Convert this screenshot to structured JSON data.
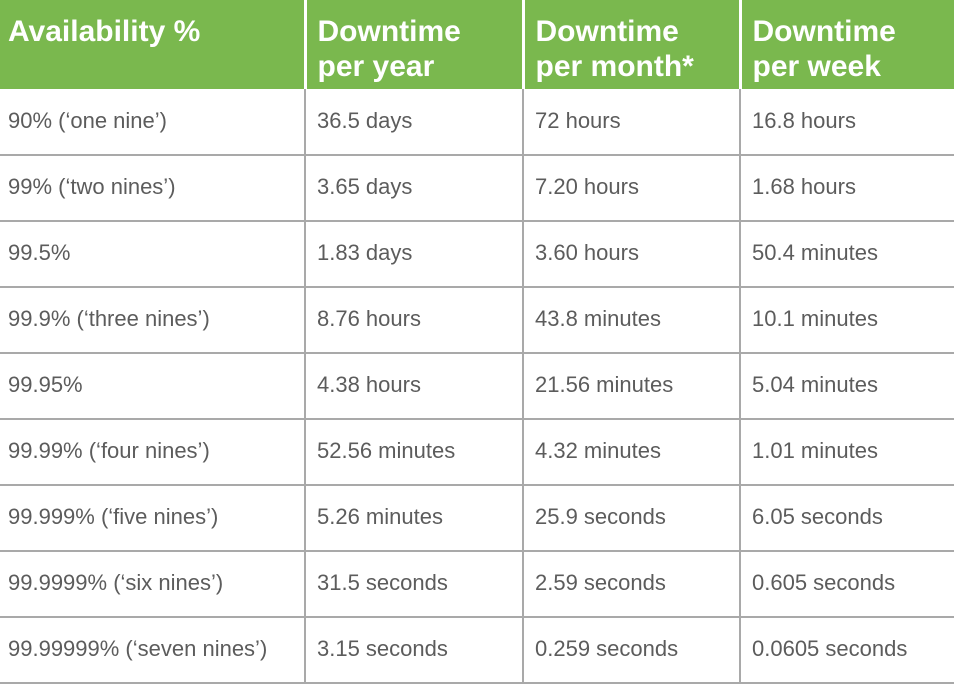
{
  "table": {
    "headers": [
      [
        "Availability %"
      ],
      [
        "Downtime",
        "per year"
      ],
      [
        "Downtime",
        "per month*"
      ],
      [
        "Downtime",
        "per week"
      ]
    ],
    "rows": [
      [
        "90% (‘one nine’)",
        "36.5 days",
        "72 hours",
        "16.8 hours"
      ],
      [
        "99% (‘two nines’)",
        "3.65 days",
        "7.20 hours",
        "1.68 hours"
      ],
      [
        "99.5%",
        "1.83 days",
        "3.60 hours",
        "50.4 minutes"
      ],
      [
        "99.9% (‘three nines’)",
        "8.76 hours",
        "43.8 minutes",
        "10.1 minutes"
      ],
      [
        "99.95%",
        "4.38 hours",
        "21.56 minutes",
        "5.04 minutes"
      ],
      [
        "99.99% (‘four nines’)",
        "52.56 minutes",
        "4.32 minutes",
        "1.01 minutes"
      ],
      [
        "99.999% (‘five nines’)",
        "5.26 minutes",
        "25.9 seconds",
        "6.05 seconds"
      ],
      [
        "99.9999% (‘six nines’)",
        "31.5 seconds",
        "2.59 seconds",
        "0.605 seconds"
      ],
      [
        "99.99999% (‘seven nines’)",
        "3.15 seconds",
        "0.259 seconds",
        "0.0605 seconds"
      ]
    ]
  },
  "colors": {
    "header_background": "#7ab84e",
    "header_text": "#ffffff",
    "body_text": "#5c5c5c",
    "grid_lines": "#a9a9a9"
  }
}
